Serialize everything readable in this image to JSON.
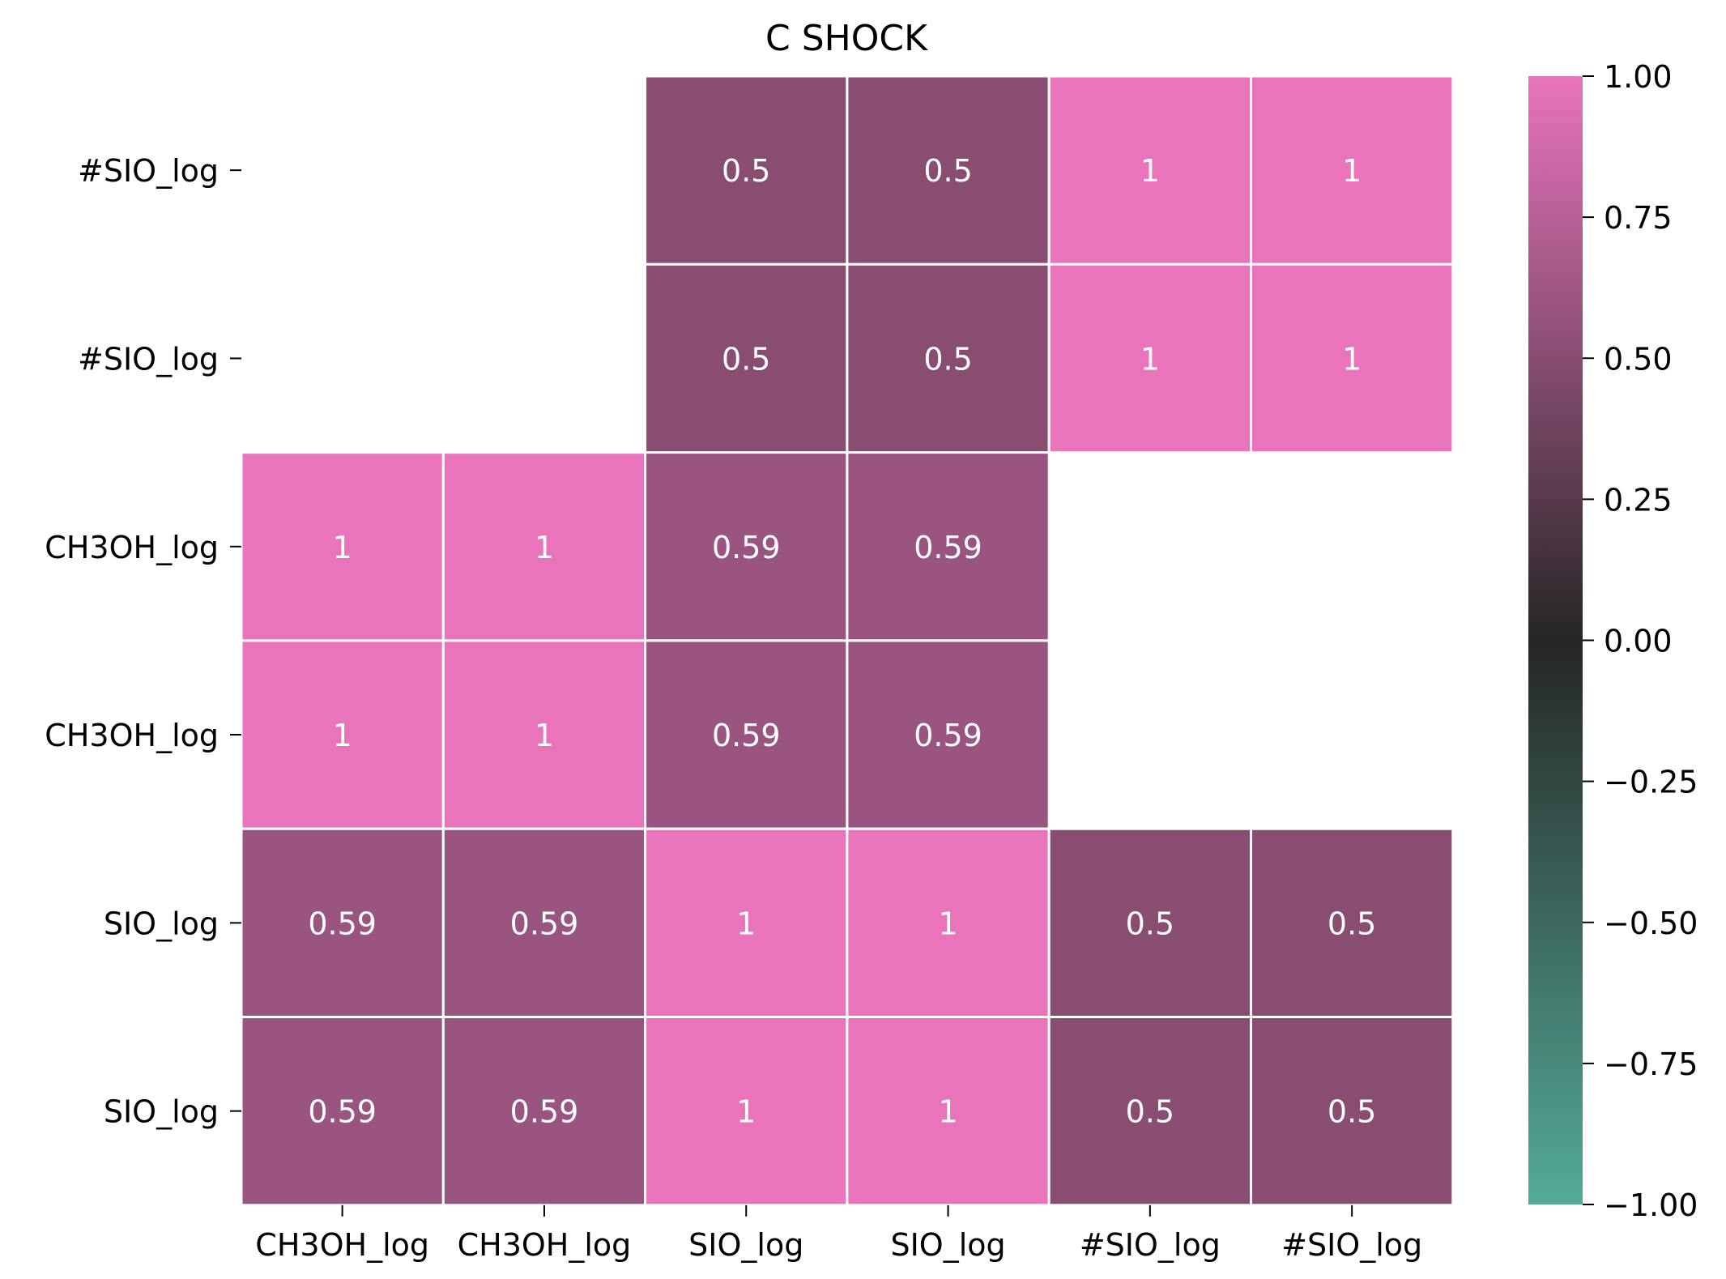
{
  "chart_data": {
    "type": "heatmap",
    "title": "C SHOCK",
    "xlabel": "",
    "ylabel": "",
    "x_categories": [
      "CH3OH_log",
      "CH3OH_log",
      "SIO_log",
      "SIO_log",
      "#SIO_log",
      "#SIO_log"
    ],
    "y_categories": [
      "#SIO_log",
      "#SIO_log",
      "CH3OH_log",
      "CH3OH_log",
      "SIO_log",
      "SIO_log"
    ],
    "values": [
      [
        null,
        null,
        0.5,
        0.5,
        1,
        1
      ],
      [
        null,
        null,
        0.5,
        0.5,
        1,
        1
      ],
      [
        1,
        1,
        0.59,
        0.59,
        null,
        null
      ],
      [
        1,
        1,
        0.59,
        0.59,
        null,
        null
      ],
      [
        0.59,
        0.59,
        1,
        1,
        0.5,
        0.5
      ],
      [
        0.59,
        0.59,
        1,
        1,
        0.5,
        0.5
      ]
    ],
    "annotations": [
      [
        "",
        "",
        "0.5",
        "0.5",
        "1",
        "1"
      ],
      [
        "",
        "",
        "0.5",
        "0.5",
        "1",
        "1"
      ],
      [
        "1",
        "1",
        "0.59",
        "0.59",
        "",
        ""
      ],
      [
        "1",
        "1",
        "0.59",
        "0.59",
        "",
        ""
      ],
      [
        "0.59",
        "0.59",
        "1",
        "1",
        "0.5",
        "0.5"
      ],
      [
        "0.59",
        "0.59",
        "1",
        "1",
        "0.5",
        "0.5"
      ]
    ],
    "colorbar": {
      "vmin": -1,
      "vmax": 1,
      "ticks": [
        1,
        0.75,
        0.5,
        0.25,
        0,
        -0.25,
        -0.5,
        -0.75,
        -1
      ],
      "tick_labels": [
        "1.00",
        "0.75",
        "0.50",
        "0.25",
        "0.00",
        "−0.25",
        "−0.50",
        "−0.75",
        "−1.00"
      ],
      "color_stops": [
        {
          "value": -1,
          "color": "#53ab98"
        },
        {
          "value": 0,
          "color": "#262626"
        },
        {
          "value": 1,
          "color": "#e974bc"
        }
      ]
    },
    "grid": false,
    "legend": "colorbar-right"
  }
}
